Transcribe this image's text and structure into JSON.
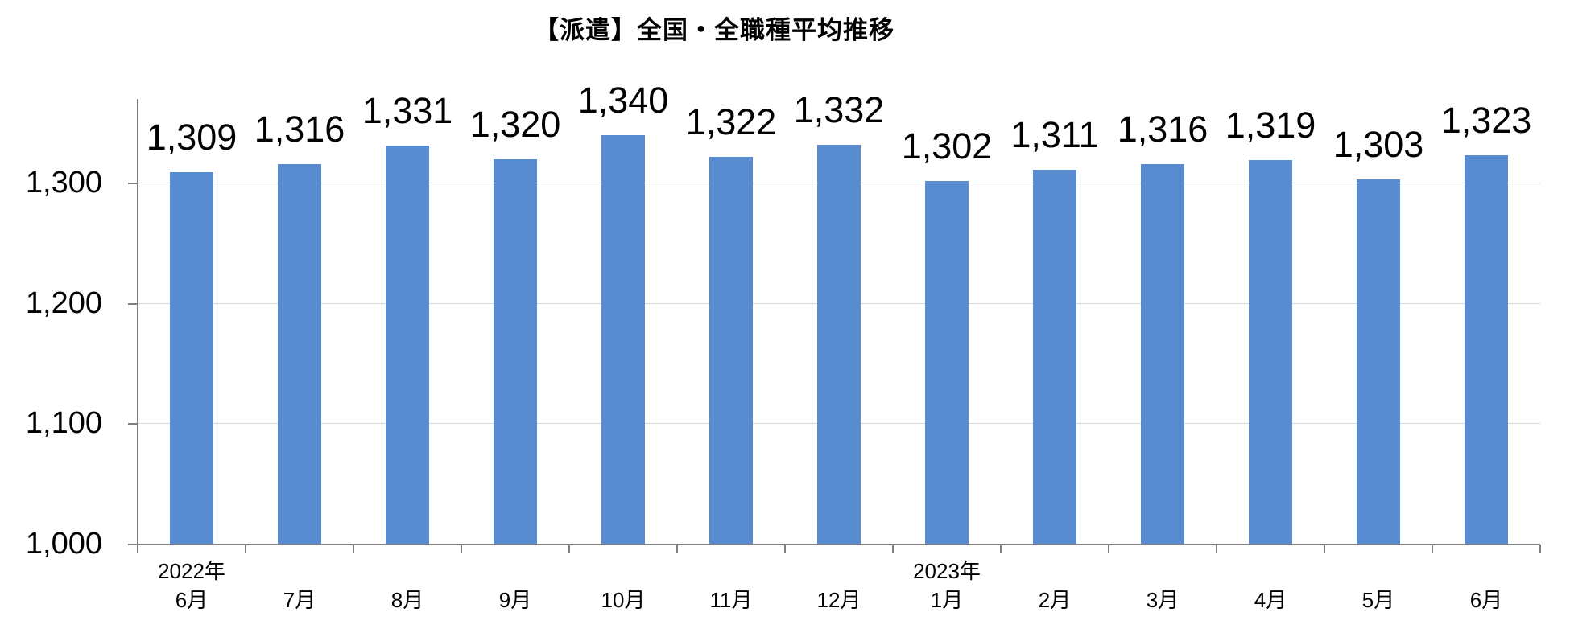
{
  "title": "【派遣】全国・全職種平均推移",
  "colors": {
    "background": "#FFFFFF",
    "bar": "#588BD0",
    "axis": "#7F7F7F",
    "gridline": "#D9D9D9",
    "text": "#000000"
  },
  "chart_data": {
    "type": "bar",
    "title": "【派遣】全国・全職種平均推移",
    "categories": [
      "6月",
      "7月",
      "8月",
      "9月",
      "10月",
      "11月",
      "12月",
      "1月",
      "2月",
      "3月",
      "4月",
      "5月",
      "6月"
    ],
    "year_markers": [
      {
        "category_index": 0,
        "label": "2022年"
      },
      {
        "category_index": 7,
        "label": "2023年"
      }
    ],
    "values": [
      1309,
      1316,
      1331,
      1320,
      1340,
      1322,
      1332,
      1302,
      1311,
      1316,
      1319,
      1303,
      1323
    ],
    "data_labels": [
      "1,309",
      "1,316",
      "1,331",
      "1,320",
      "1,340",
      "1,322",
      "1,332",
      "1,302",
      "1,311",
      "1,316",
      "1,319",
      "1,303",
      "1,323"
    ],
    "xlabel": "",
    "ylabel": "",
    "ylim": [
      1000,
      1370
    ],
    "yticks": [
      1000,
      1100,
      1200,
      1300
    ],
    "ytick_labels": [
      "1,000",
      "1,100",
      "1,200",
      "1,300"
    ],
    "grid": "horizontal",
    "legend": "none",
    "bar_color": "#588BD0"
  }
}
